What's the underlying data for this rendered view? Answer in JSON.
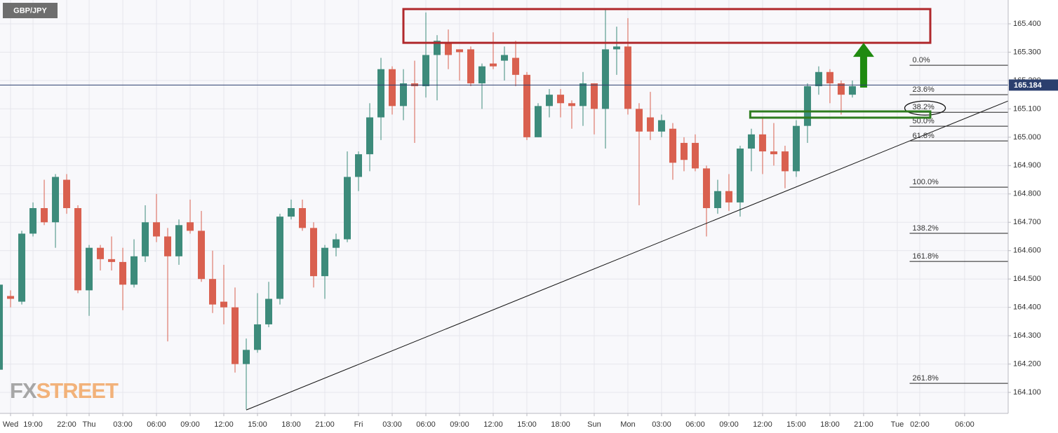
{
  "chart_data": {
    "type": "candlestick",
    "symbol": "GBP/JPY",
    "watermark": [
      "FX",
      "STREET"
    ],
    "x": [
      -3,
      -2,
      -1,
      0,
      1,
      2,
      3,
      4,
      5,
      6,
      7,
      8,
      9,
      10,
      11,
      12,
      13,
      14,
      15,
      16,
      17,
      18,
      19,
      20,
      21,
      22,
      23,
      24,
      25,
      26,
      27,
      28,
      29,
      30,
      31,
      32,
      33,
      34,
      35,
      36,
      37,
      38,
      39,
      40,
      41,
      42,
      43,
      44,
      45,
      46,
      47,
      48,
      49,
      50,
      51,
      52,
      53,
      54,
      55,
      56,
      57,
      58,
      59,
      60,
      61,
      62,
      63,
      64,
      65,
      66,
      67,
      68,
      69,
      70,
      71,
      72,
      73
    ],
    "open": [
      164.18,
      164.44,
      164.42,
      164.66,
      164.75,
      164.7,
      164.85,
      164.75,
      164.46,
      164.61,
      164.57,
      164.56,
      164.48,
      164.58,
      164.7,
      164.65,
      164.58,
      164.7,
      164.67,
      164.5,
      164.42,
      164.4,
      164.2,
      164.25,
      164.34,
      164.43,
      164.72,
      164.75,
      164.68,
      164.51,
      164.61,
      164.64,
      164.86,
      164.94,
      165.07,
      165.24,
      165.11,
      165.19,
      165.18,
      165.29,
      165.33,
      165.31,
      165.31,
      165.19,
      165.26,
      165.27,
      165.28,
      165.22,
      165.0,
      165.11,
      165.15,
      165.12,
      165.11,
      165.19,
      165.1,
      165.31,
      165.32,
      165.1,
      165.07,
      165.02,
      165.03,
      164.98,
      164.98,
      164.89,
      164.75,
      164.81,
      164.77,
      164.96,
      165.01,
      164.95,
      164.95,
      164.88,
      165.04,
      165.18,
      165.23,
      165.19,
      165.15
    ],
    "high": [
      164.5,
      164.46,
      164.67,
      164.77,
      164.85,
      164.87,
      164.87,
      164.76,
      164.62,
      164.62,
      164.65,
      164.61,
      164.64,
      164.76,
      164.8,
      164.68,
      164.71,
      164.78,
      164.74,
      164.6,
      164.55,
      164.47,
      164.29,
      164.45,
      164.49,
      164.73,
      164.78,
      164.78,
      164.7,
      164.62,
      164.66,
      164.95,
      164.95,
      165.12,
      165.28,
      165.25,
      165.24,
      165.27,
      165.44,
      165.36,
      165.38,
      165.31,
      165.32,
      165.26,
      165.37,
      165.32,
      165.34,
      165.23,
      165.12,
      165.17,
      165.17,
      165.13,
      165.23,
      165.19,
      165.45,
      165.39,
      165.42,
      165.12,
      165.16,
      165.08,
      165.05,
      165.0,
      165.01,
      164.9,
      164.85,
      164.87,
      164.97,
      165.03,
      165.07,
      165.05,
      164.97,
      165.06,
      165.19,
      165.25,
      165.24,
      165.2,
      165.2
    ],
    "low": [
      164.05,
      164.4,
      164.41,
      164.65,
      164.69,
      164.61,
      164.73,
      164.45,
      164.37,
      164.53,
      164.53,
      164.39,
      164.47,
      164.56,
      164.63,
      164.28,
      164.55,
      164.66,
      164.49,
      164.38,
      164.34,
      164.17,
      164.04,
      164.24,
      164.33,
      164.41,
      164.71,
      164.67,
      164.47,
      164.43,
      164.58,
      164.63,
      164.81,
      164.88,
      164.99,
      165.08,
      165.06,
      164.98,
      165.14,
      165.13,
      165.24,
      165.2,
      165.18,
      165.1,
      165.24,
      165.2,
      165.18,
      164.99,
      165.0,
      165.07,
      165.07,
      165.03,
      165.04,
      165.01,
      164.96,
      165.22,
      165.08,
      164.76,
      164.99,
      165.0,
      164.85,
      164.88,
      164.88,
      164.65,
      164.73,
      164.74,
      164.72,
      164.88,
      164.87,
      164.9,
      164.82,
      164.86,
      164.98,
      165.15,
      165.12,
      165.08,
      165.14
    ],
    "close": [
      164.48,
      164.43,
      164.66,
      164.75,
      164.7,
      164.86,
      164.75,
      164.46,
      164.61,
      164.57,
      164.56,
      164.48,
      164.58,
      164.7,
      164.65,
      164.58,
      164.69,
      164.67,
      164.5,
      164.41,
      164.4,
      164.2,
      164.25,
      164.34,
      164.43,
      164.72,
      164.75,
      164.68,
      164.51,
      164.61,
      164.64,
      164.86,
      164.94,
      165.07,
      165.24,
      165.11,
      165.19,
      165.18,
      165.29,
      165.34,
      165.29,
      165.3,
      165.19,
      165.25,
      165.25,
      165.29,
      165.22,
      165.0,
      165.11,
      165.15,
      165.12,
      165.11,
      165.19,
      165.1,
      165.31,
      165.32,
      165.1,
      165.02,
      165.02,
      165.06,
      164.91,
      164.92,
      164.89,
      164.75,
      164.81,
      164.77,
      164.96,
      165.01,
      164.95,
      164.94,
      164.88,
      165.04,
      165.18,
      165.23,
      165.19,
      165.15,
      165.18
    ],
    "up_color": "#3d8b7b",
    "down_color": "#d9604f",
    "xlim": [
      -2.94,
      86.88
    ],
    "ylim": [
      164.026,
      165.484
    ],
    "yticks": [
      {
        "value": 164.1,
        "label": "164.100"
      },
      {
        "value": 164.2,
        "label": "164.200"
      },
      {
        "value": 164.3,
        "label": "164.300"
      },
      {
        "value": 164.4,
        "label": "164.400"
      },
      {
        "value": 164.5,
        "label": "164.500"
      },
      {
        "value": 164.6,
        "label": "164.600"
      },
      {
        "value": 164.7,
        "label": "164.700"
      },
      {
        "value": 164.8,
        "label": "164.800"
      },
      {
        "value": 164.9,
        "label": "164.900"
      },
      {
        "value": 165.0,
        "label": "165.000"
      },
      {
        "value": 165.1,
        "label": "165.100"
      },
      {
        "value": 165.2,
        "label": "165.200"
      },
      {
        "value": 165.3,
        "label": "165.300"
      },
      {
        "value": 165.4,
        "label": "165.400"
      }
    ],
    "xticks": [
      {
        "value": -2,
        "label": "Wed"
      },
      {
        "value": 0,
        "label": "19:00"
      },
      {
        "value": 3,
        "label": "22:00"
      },
      {
        "value": 5,
        "label": "Thu"
      },
      {
        "value": 8,
        "label": "03:00"
      },
      {
        "value": 11,
        "label": "06:00"
      },
      {
        "value": 14,
        "label": "09:00"
      },
      {
        "value": 17,
        "label": "12:00"
      },
      {
        "value": 20,
        "label": "15:00"
      },
      {
        "value": 23,
        "label": "18:00"
      },
      {
        "value": 26,
        "label": "21:00"
      },
      {
        "value": 29,
        "label": "Fri"
      },
      {
        "value": 32,
        "label": "03:00"
      },
      {
        "value": 35,
        "label": "06:00"
      },
      {
        "value": 38,
        "label": "09:00"
      },
      {
        "value": 41,
        "label": "12:00"
      },
      {
        "value": 44,
        "label": "15:00"
      },
      {
        "value": 47,
        "label": "18:00"
      },
      {
        "value": 50,
        "label": "Sun"
      },
      {
        "value": 53,
        "label": "Mon"
      },
      {
        "value": 56,
        "label": "03:00"
      },
      {
        "value": 59,
        "label": "06:00"
      },
      {
        "value": 62,
        "label": "09:00"
      },
      {
        "value": 65,
        "label": "12:00"
      },
      {
        "value": 68,
        "label": "15:00"
      },
      {
        "value": 71,
        "label": "18:00"
      },
      {
        "value": 74,
        "label": "21:00"
      },
      {
        "value": 77,
        "label": "Tue"
      },
      {
        "value": 79,
        "label": "02:00"
      },
      {
        "value": 83,
        "label": "06:00"
      }
    ],
    "grid": true,
    "last_price": 165.184,
    "last_price_color": "#2b3f6e",
    "fib_start": 78.1,
    "fib": [
      {
        "label": "0.0%",
        "value": 165.254
      },
      {
        "label": "23.6%",
        "value": 165.15
      },
      {
        "label": "38.2%",
        "value": 165.088,
        "circled": true
      },
      {
        "label": "50.0%",
        "value": 165.039
      },
      {
        "label": "61.8%",
        "value": 164.987
      },
      {
        "label": "100.0%",
        "value": 164.824
      },
      {
        "label": "138.2%",
        "value": 164.661
      },
      {
        "label": "161.8%",
        "value": 164.562
      },
      {
        "label": "261.8%",
        "value": 164.132
      }
    ],
    "trendline": {
      "x": [
        19,
        86.88
      ],
      "y": [
        164.038,
        165.128
      ]
    },
    "boxes": [
      {
        "x": [
          33,
          79.94
        ],
        "y": [
          165.333,
          165.452
        ],
        "color": "#b0282c"
      },
      {
        "x": [
          63.9,
          79.94
        ],
        "y": [
          165.069,
          165.091
        ],
        "color": "#2e7d1f"
      }
    ],
    "arrow": {
      "x": 74,
      "y": [
        165.175,
        165.333
      ],
      "color": "#1f8a10"
    }
  }
}
